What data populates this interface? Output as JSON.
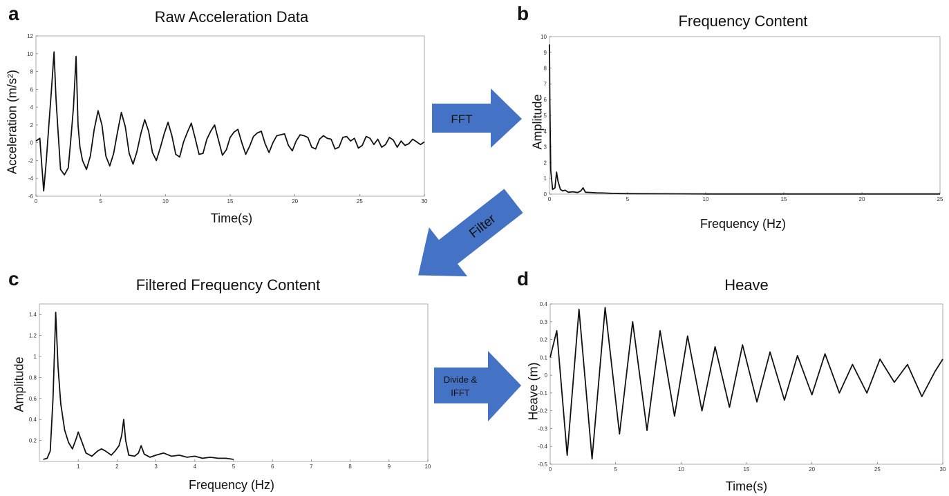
{
  "panels": {
    "a": {
      "letter": "a",
      "title": "Raw Acceleration Data",
      "xlabel": "Time(s)",
      "ylabel": "Acceleration (m/s²)"
    },
    "b": {
      "letter": "b",
      "title": "Frequency Content",
      "xlabel": "Frequency (Hz)",
      "ylabel": "Amplitude"
    },
    "c": {
      "letter": "c",
      "title": "Filtered Frequency Content",
      "xlabel": "Frequency (Hz)",
      "ylabel": "Amplitude"
    },
    "d": {
      "letter": "d",
      "title": "Heave",
      "xlabel": "Time(s)",
      "ylabel": "Heave (m)"
    }
  },
  "arrows": {
    "fft": "FFT",
    "filter": "Filter",
    "divide_line1": "Divide &",
    "divide_line2": "IFFT",
    "color": "#4472c4"
  },
  "chart_data": [
    {
      "id": "a",
      "type": "line",
      "title": "Raw Acceleration Data",
      "xlabel": "Time(s)",
      "ylabel": "Acceleration (m/s²)",
      "xlim": [
        0,
        30
      ],
      "ylim": [
        -6,
        12
      ],
      "xticks": [
        0,
        5,
        10,
        15,
        20,
        25,
        30
      ],
      "yticks": [
        -6,
        -4,
        -2,
        0,
        2,
        4,
        6,
        8,
        10,
        12
      ],
      "grid": false,
      "series": [
        {
          "x": [
            0,
            0.3,
            0.6,
            0.8,
            1.0,
            1.2,
            1.4,
            1.55,
            1.7,
            1.9,
            2.2,
            2.5,
            2.7,
            2.9,
            3.1,
            3.25,
            3.4,
            3.6,
            3.9,
            4.2,
            4.5,
            4.8,
            5.1,
            5.4,
            5.7,
            6.0,
            6.3,
            6.6,
            6.9,
            7.2,
            7.5,
            7.8,
            8.1,
            8.4,
            8.7,
            9.0,
            9.3,
            9.6,
            9.9,
            10.2,
            10.5,
            10.8,
            11.1,
            11.4,
            11.7,
            12.0,
            12.3,
            12.6,
            12.9,
            13.2,
            13.5,
            13.8,
            14.1,
            14.4,
            14.7,
            15.0,
            15.3,
            15.6,
            15.9,
            16.2,
            16.5,
            16.8,
            17.1,
            17.4,
            17.7,
            18.0,
            18.3,
            18.6,
            18.9,
            19.2,
            19.5,
            19.8,
            20.1,
            20.4,
            20.7,
            21.0,
            21.3,
            21.6,
            21.9,
            22.2,
            22.5,
            22.8,
            23.1,
            23.4,
            23.7,
            24.0,
            24.3,
            24.6,
            24.9,
            25.2,
            25.5,
            25.8,
            26.1,
            26.4,
            26.7,
            27.0,
            27.3,
            27.6,
            27.9,
            28.2,
            28.5,
            28.8,
            29.1,
            29.4,
            29.7,
            30.0
          ],
          "y": [
            0.2,
            0.5,
            -5.4,
            -2,
            2,
            6,
            10.2,
            5,
            1.5,
            -3,
            -3.6,
            -2.8,
            0.5,
            4,
            9.7,
            2,
            -0.5,
            -2,
            -3,
            -1.5,
            1.5,
            3.6,
            2,
            -1.5,
            -2.6,
            -1.2,
            1.2,
            3.4,
            1.8,
            -1.2,
            -2.4,
            -1,
            1,
            2.6,
            1.3,
            -1.1,
            -2,
            -0.6,
            1,
            2.3,
            0.8,
            -1.3,
            -1.6,
            0.1,
            1.2,
            2.2,
            0.5,
            -1.3,
            -1.2,
            0.4,
            1.3,
            2,
            0.3,
            -1.4,
            -0.8,
            0.6,
            1.2,
            1.5,
            0,
            -1.3,
            -0.4,
            0.7,
            1.1,
            1.3,
            -0.1,
            -1.1,
            0,
            0.8,
            0.9,
            1,
            -0.3,
            -0.9,
            0.2,
            0.9,
            0.8,
            0.6,
            -0.5,
            -0.7,
            0.4,
            0.8,
            0.5,
            0.4,
            -0.7,
            -0.5,
            0.6,
            0.7,
            0.2,
            0.5,
            -0.6,
            -0.3,
            0.7,
            0.5,
            -0.2,
            0.4,
            -0.5,
            -0.2,
            0.6,
            0.3,
            -0.5,
            0.2,
            -0.3,
            -0.1,
            0.4,
            0.1,
            -0.2,
            0.1
          ]
        }
      ]
    },
    {
      "id": "b",
      "type": "line",
      "title": "Frequency Content",
      "xlabel": "Frequency (Hz)",
      "ylabel": "Amplitude",
      "xlim": [
        0,
        25
      ],
      "ylim": [
        0,
        10
      ],
      "xticks": [
        0,
        5,
        10,
        15,
        20,
        25
      ],
      "yticks": [
        0,
        1,
        2,
        3,
        4,
        5,
        6,
        7,
        8,
        9,
        10
      ],
      "grid": false,
      "series": [
        {
          "x": [
            0,
            0.02,
            0.08,
            0.2,
            0.35,
            0.45,
            0.55,
            0.7,
            0.85,
            1.0,
            1.2,
            1.5,
            1.8,
            2.0,
            2.15,
            2.3,
            2.6,
            3.0,
            3.5,
            4.0,
            5,
            7,
            10,
            15,
            20,
            25
          ],
          "y": [
            9.5,
            6,
            1.5,
            0.3,
            0.4,
            1.4,
            0.8,
            0.3,
            0.2,
            0.25,
            0.12,
            0.15,
            0.1,
            0.2,
            0.4,
            0.12,
            0.1,
            0.08,
            0.07,
            0.05,
            0.03,
            0.02,
            0.01,
            0.01,
            0.01,
            0.01
          ]
        }
      ]
    },
    {
      "id": "c",
      "type": "line",
      "title": "Filtered Frequency Content",
      "xlabel": "Frequency (Hz)",
      "ylabel": "Amplitude",
      "xlim": [
        0,
        10
      ],
      "ylim": [
        0,
        1.5
      ],
      "xticks": [
        1,
        2,
        3,
        4,
        5,
        6,
        7,
        8,
        9,
        10
      ],
      "yticks": [
        0.2,
        0.4,
        0.6,
        0.8,
        1,
        1.2,
        1.4
      ],
      "grid": false,
      "series": [
        {
          "x": [
            0.1,
            0.2,
            0.28,
            0.35,
            0.42,
            0.48,
            0.55,
            0.65,
            0.75,
            0.85,
            0.95,
            1.0,
            1.08,
            1.2,
            1.35,
            1.5,
            1.6,
            1.7,
            1.85,
            1.95,
            2.05,
            2.12,
            2.17,
            2.22,
            2.3,
            2.45,
            2.55,
            2.62,
            2.7,
            2.85,
            3.0,
            3.2,
            3.4,
            3.6,
            3.8,
            4.0,
            4.2,
            4.4,
            4.6,
            4.8,
            5.0
          ],
          "y": [
            0.02,
            0.03,
            0.1,
            0.6,
            1.42,
            0.9,
            0.55,
            0.3,
            0.18,
            0.12,
            0.22,
            0.28,
            0.2,
            0.08,
            0.05,
            0.1,
            0.12,
            0.1,
            0.06,
            0.1,
            0.15,
            0.25,
            0.4,
            0.2,
            0.06,
            0.05,
            0.08,
            0.15,
            0.07,
            0.04,
            0.06,
            0.08,
            0.05,
            0.06,
            0.04,
            0.05,
            0.03,
            0.04,
            0.03,
            0.03,
            0.02
          ]
        }
      ]
    },
    {
      "id": "d",
      "type": "line",
      "title": "Heave",
      "xlabel": "Time(s)",
      "ylabel": "Heave (m)",
      "xlim": [
        0,
        30
      ],
      "ylim": [
        -0.5,
        0.4
      ],
      "xticks": [
        0,
        5,
        10,
        15,
        20,
        25,
        30
      ],
      "yticks": [
        -0.5,
        -0.4,
        -0.3,
        -0.2,
        -0.1,
        0,
        0.1,
        0.2,
        0.3,
        0.4
      ],
      "grid": false,
      "series": [
        {
          "x": [
            0,
            0.5,
            1.3,
            2.2,
            3.2,
            4.2,
            5.3,
            6.3,
            7.4,
            8.4,
            9.5,
            10.5,
            11.6,
            12.6,
            13.7,
            14.7,
            15.8,
            16.8,
            17.9,
            18.9,
            20.0,
            21.0,
            22.1,
            23.1,
            24.2,
            25.2,
            26.3,
            27.3,
            28.4,
            29.4,
            30.0
          ],
          "y": [
            0.1,
            0.25,
            -0.45,
            0.37,
            -0.47,
            0.38,
            -0.33,
            0.3,
            -0.31,
            0.25,
            -0.23,
            0.22,
            -0.2,
            0.16,
            -0.18,
            0.17,
            -0.15,
            0.13,
            -0.14,
            0.11,
            -0.11,
            0.12,
            -0.1,
            0.06,
            -0.1,
            0.09,
            -0.04,
            0.06,
            -0.12,
            0.02,
            0.09
          ]
        }
      ]
    }
  ]
}
